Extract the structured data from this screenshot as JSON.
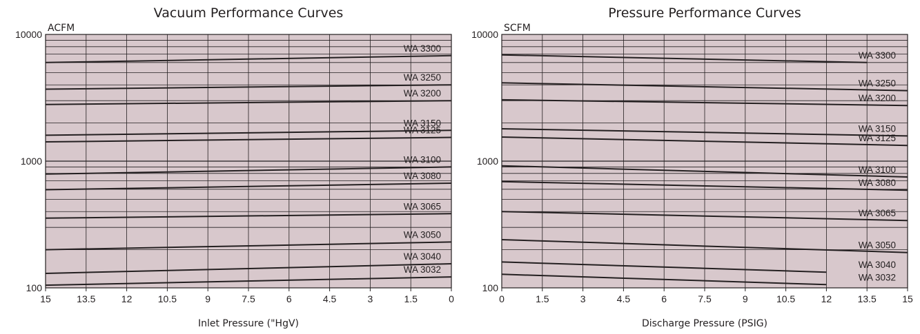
{
  "chart_data": [
    {
      "type": "line",
      "title": "Vacuum Performance Curves",
      "ylabel": "ACFM",
      "xlabel": "Inlet Pressure (\"HgV)",
      "yscale": "log",
      "ylim": [
        100,
        10000
      ],
      "xlim": [
        15,
        0
      ],
      "x_reversed": true,
      "grid": true,
      "background": "#d8c8cc",
      "yticks": [
        "10000",
        "1000",
        "100"
      ],
      "xticks": [
        "15",
        "13.5",
        "12",
        "10.5",
        "9",
        "7.5",
        "6",
        "4.5",
        "3",
        "1.5",
        "0"
      ],
      "series": [
        {
          "name": "WA 3300",
          "x": [
            15,
            0
          ],
          "values": [
            6000,
            6800
          ]
        },
        {
          "name": "WA 3250",
          "x": [
            15,
            0
          ],
          "values": [
            3700,
            4000
          ]
        },
        {
          "name": "WA 3200",
          "x": [
            15,
            0
          ],
          "values": [
            2800,
            3000
          ]
        },
        {
          "name": "WA 3150",
          "x": [
            15,
            0
          ],
          "values": [
            1600,
            1750
          ]
        },
        {
          "name": "WA 3125",
          "x": [
            15,
            0
          ],
          "values": [
            1420,
            1540
          ]
        },
        {
          "name": "WA 3100",
          "x": [
            15,
            0
          ],
          "values": [
            790,
            900
          ]
        },
        {
          "name": "WA 3080",
          "x": [
            15,
            0
          ],
          "values": [
            595,
            670
          ]
        },
        {
          "name": "WA 3065",
          "x": [
            15,
            0
          ],
          "values": [
            355,
            385
          ]
        },
        {
          "name": "WA 3050",
          "x": [
            15,
            0
          ],
          "values": [
            200,
            230
          ]
        },
        {
          "name": "WA 3040",
          "x": [
            15,
            0
          ],
          "values": [
            130,
            155
          ]
        },
        {
          "name": "WA 3032",
          "x": [
            15,
            0
          ],
          "values": [
            105,
            122
          ]
        }
      ]
    },
    {
      "type": "line",
      "title": "Pressure Performance Curves",
      "ylabel": "SCFM",
      "xlabel": "Discharge Pressure (PSIG)",
      "yscale": "log",
      "ylim": [
        100,
        10000
      ],
      "xlim": [
        0,
        15
      ],
      "grid": true,
      "background": "#d8c8cc",
      "yticks": [
        "10000",
        "1000",
        "100"
      ],
      "xticks": [
        "0",
        "1.5",
        "3",
        "4.5",
        "6",
        "7.5",
        "9",
        "10.5",
        "12",
        "13.5",
        "15"
      ],
      "series": [
        {
          "name": "WA 3300",
          "x": [
            0,
            13.5
          ],
          "values": [
            6900,
            6000
          ]
        },
        {
          "name": "WA 3250",
          "x": [
            0,
            15
          ],
          "values": [
            4150,
            3600
          ]
        },
        {
          "name": "WA 3200",
          "x": [
            0,
            15
          ],
          "values": [
            3050,
            2750
          ]
        },
        {
          "name": "WA 3150",
          "x": [
            0,
            15
          ],
          "values": [
            1800,
            1580
          ]
        },
        {
          "name": "WA 3125",
          "x": [
            0,
            15
          ],
          "values": [
            1550,
            1330
          ]
        },
        {
          "name": "WA 3100",
          "x": [
            0,
            15
          ],
          "values": [
            920,
            750
          ]
        },
        {
          "name": "WA 3080",
          "x": [
            0,
            15
          ],
          "values": [
            690,
            590
          ]
        },
        {
          "name": "WA 3065",
          "x": [
            0,
            15
          ],
          "values": [
            400,
            340
          ]
        },
        {
          "name": "WA 3050",
          "x": [
            0,
            15
          ],
          "values": [
            240,
            190
          ]
        },
        {
          "name": "WA 3040",
          "x": [
            0,
            12
          ],
          "values": [
            160,
            133
          ]
        },
        {
          "name": "WA 3032",
          "x": [
            0,
            12
          ],
          "values": [
            128,
            106
          ]
        }
      ]
    }
  ]
}
